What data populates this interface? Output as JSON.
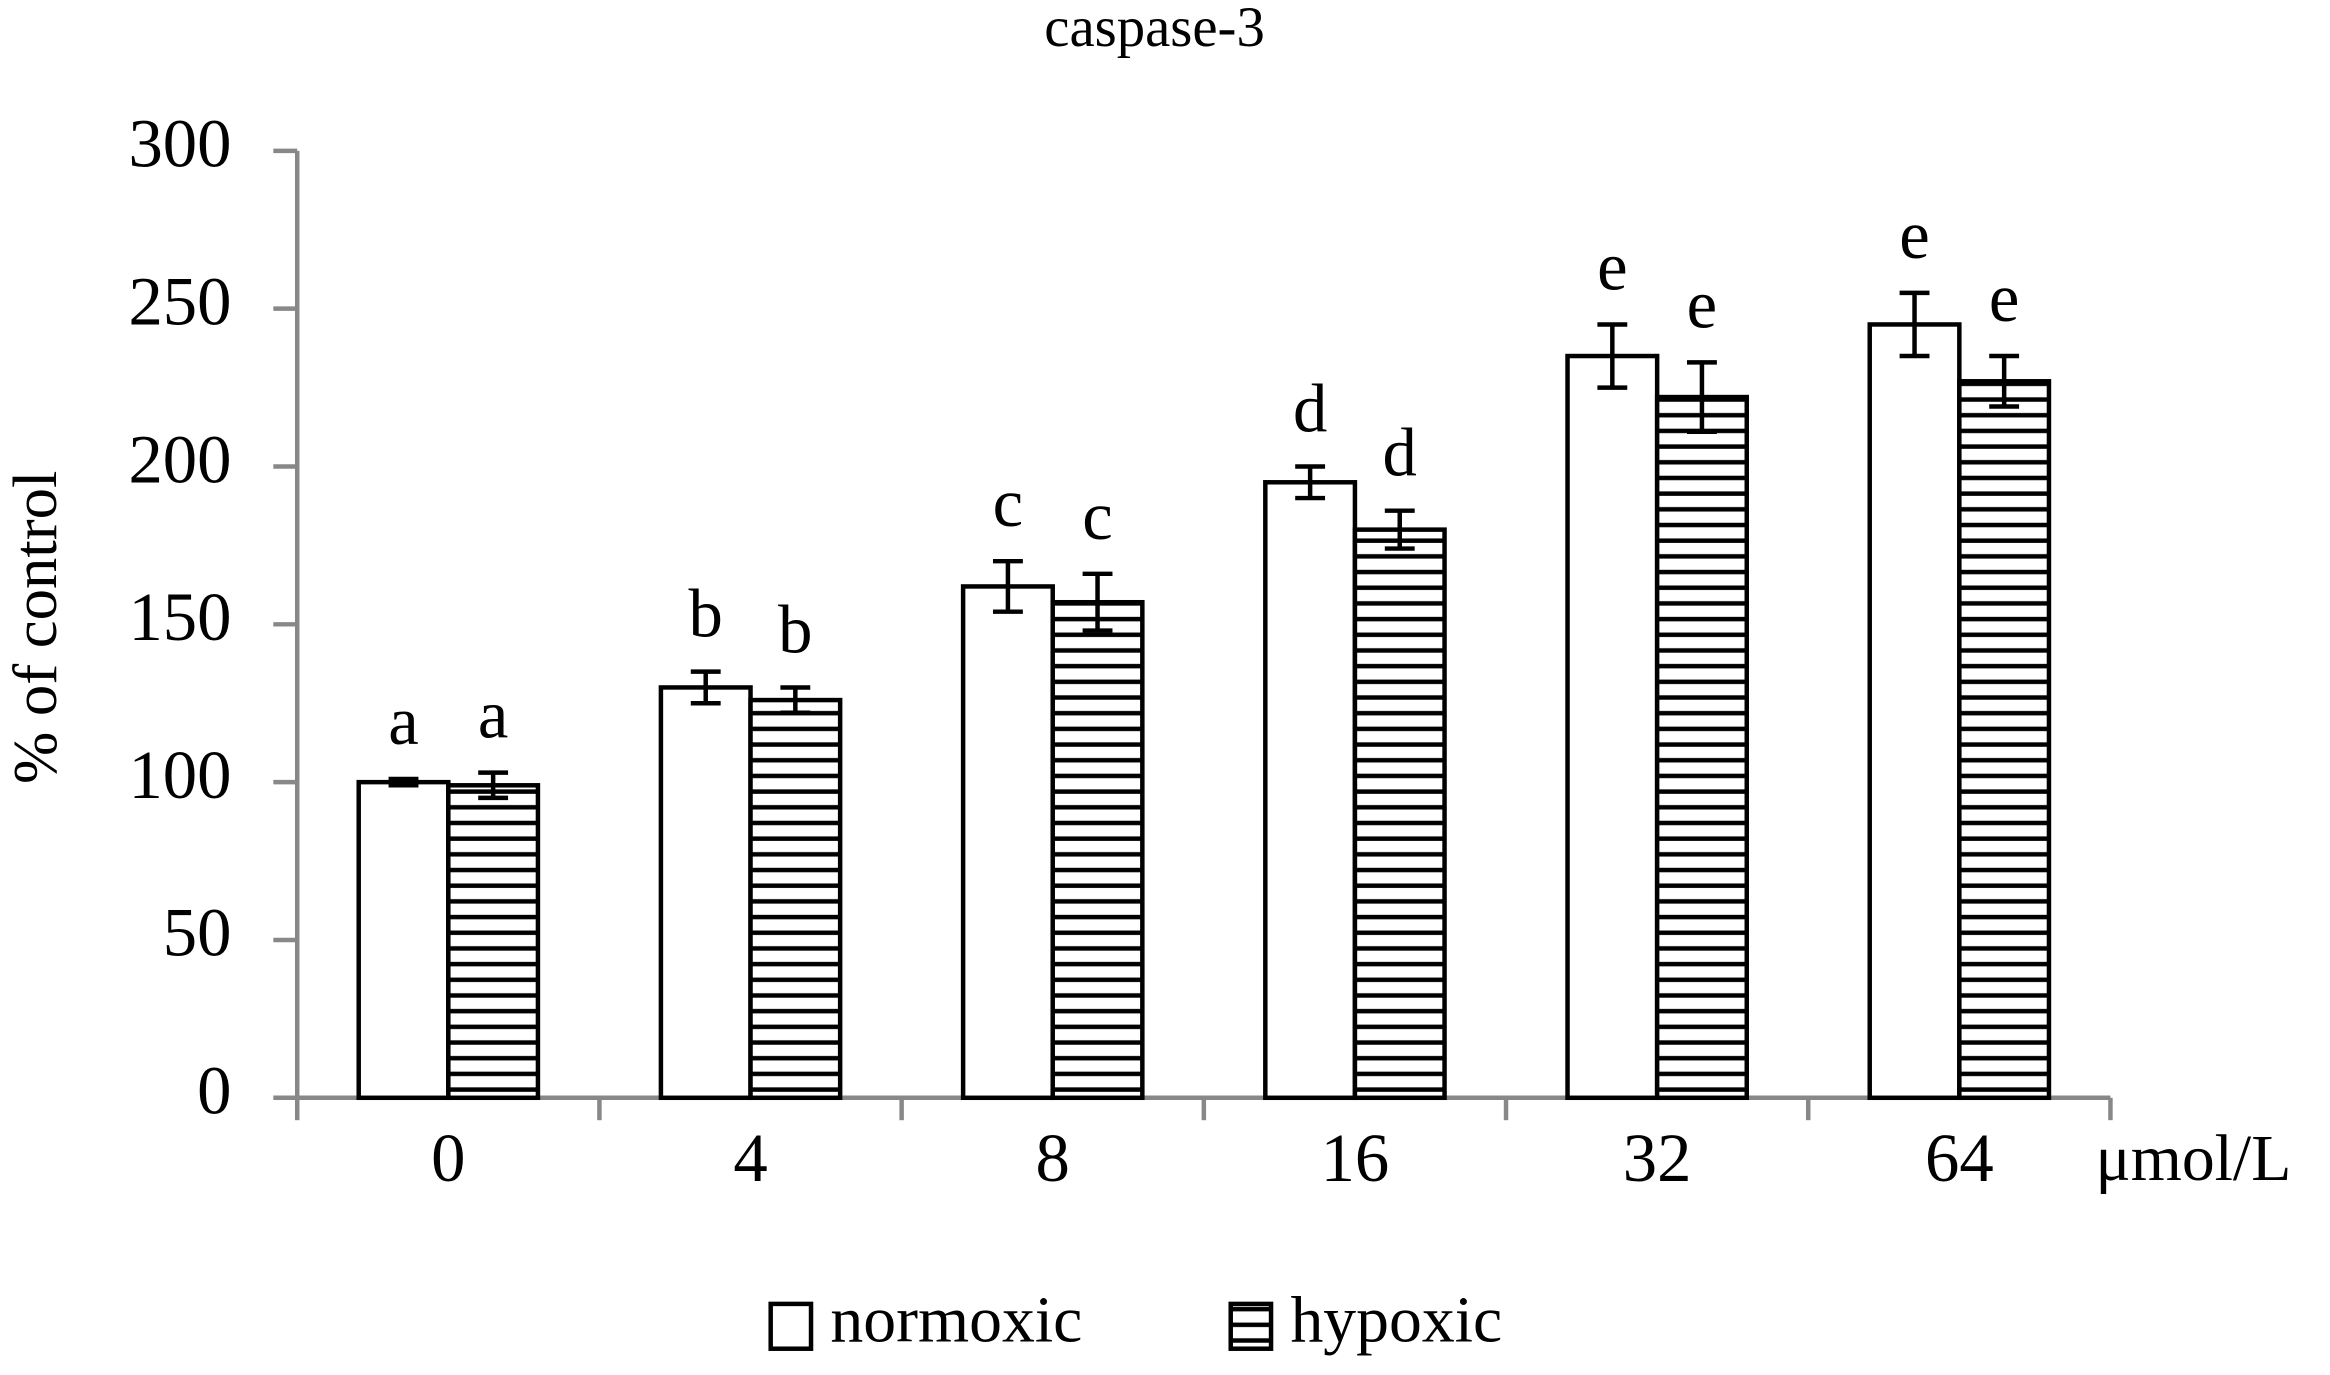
{
  "chart_data": {
    "type": "bar",
    "title": "caspase-3",
    "y_label": "% of control",
    "x_unit": "μmol/L",
    "categories": [
      "0",
      "4",
      "8",
      "16",
      "32",
      "64"
    ],
    "series": [
      {
        "name": "normoxic",
        "color": "#ffffff",
        "hatch": "none",
        "values": [
          100,
          130,
          162,
          195,
          235,
          245
        ],
        "errors": [
          1,
          5,
          8,
          5,
          10,
          10
        ],
        "labels": [
          "a",
          "b",
          "c",
          "d",
          "e",
          "e"
        ]
      },
      {
        "name": "hypoxic",
        "color": "#ffffff",
        "hatch": "horizontal",
        "values": [
          99,
          126,
          157,
          180,
          222,
          227
        ],
        "errors": [
          4,
          4,
          9,
          6,
          11,
          8
        ],
        "labels": [
          "a",
          "b",
          "c",
          "d",
          "e",
          "e"
        ]
      }
    ],
    "ylim": [
      0,
      300
    ],
    "yticks": [
      0,
      50,
      100,
      150,
      200,
      250,
      300
    ],
    "grid": false
  }
}
